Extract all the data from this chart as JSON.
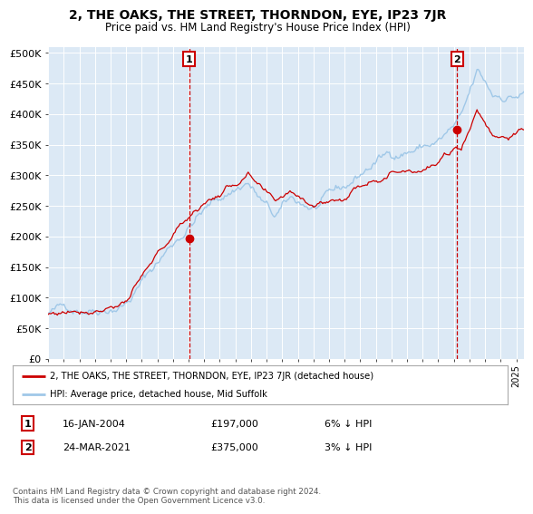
{
  "title": "2, THE OAKS, THE STREET, THORNDON, EYE, IP23 7JR",
  "subtitle": "Price paid vs. HM Land Registry's House Price Index (HPI)",
  "bg_color": "#dce9f5",
  "hpi_color": "#a0c8e8",
  "price_color": "#cc0000",
  "vline_color": "#cc0000",
  "ylabel_ticks": [
    "£0",
    "£50K",
    "£100K",
    "£150K",
    "£200K",
    "£250K",
    "£300K",
    "£350K",
    "£400K",
    "£450K",
    "£500K"
  ],
  "ytick_values": [
    0,
    50000,
    100000,
    150000,
    200000,
    250000,
    300000,
    350000,
    400000,
    450000,
    500000
  ],
  "xstart_year": 1995,
  "xend_year": 2025,
  "sale1_date": 2004.04,
  "sale1_price": 197000,
  "sale2_date": 2021.22,
  "sale2_price": 375000,
  "legend_line1": "2, THE OAKS, THE STREET, THORNDON, EYE, IP23 7JR (detached house)",
  "legend_line2": "HPI: Average price, detached house, Mid Suffolk",
  "footer": "Contains HM Land Registry data © Crown copyright and database right 2024.\nThis data is licensed under the Open Government Licence v3.0."
}
